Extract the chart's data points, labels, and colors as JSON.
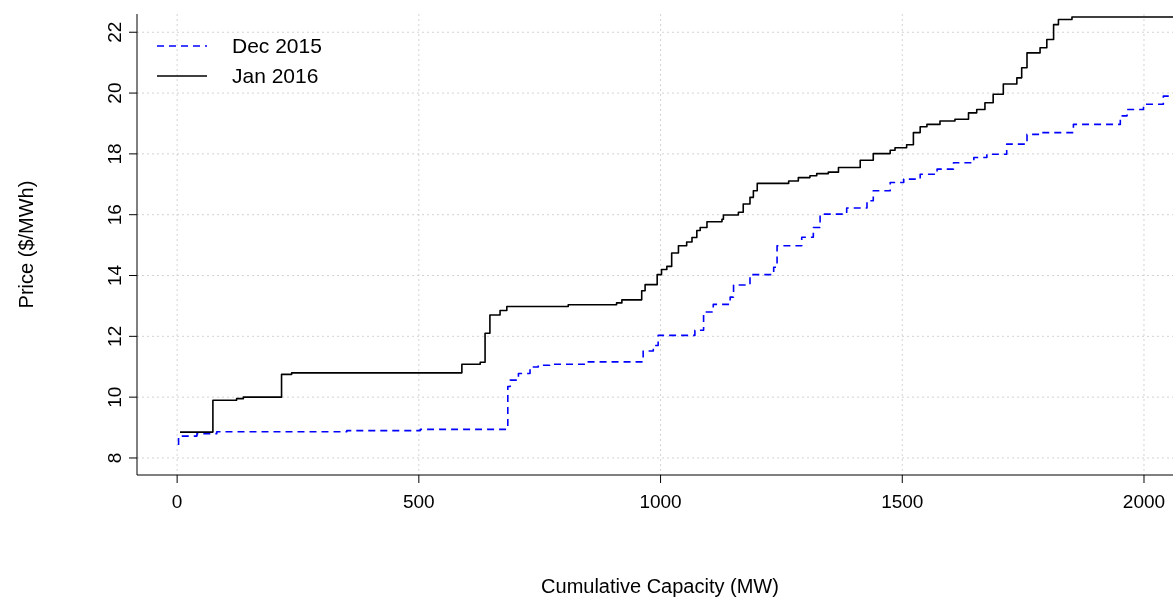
{
  "chart_data": {
    "type": "step",
    "xlabel": "Cumulative Capacity (MW)",
    "ylabel": "Price ($/MWh)",
    "xlim": [
      -83,
      2060
    ],
    "ylim": [
      7.44,
      22.6
    ],
    "xticks": [
      0,
      500,
      1000,
      1500,
      2000
    ],
    "yticks": [
      8,
      10,
      12,
      14,
      16,
      18,
      20,
      22
    ],
    "grid": true,
    "legend": "top left",
    "series": [
      {
        "name": "Dec 2015",
        "color": "#0000ff",
        "line_style": "dashed",
        "x": [
          3,
          3,
          41,
          82,
          351,
          503,
          684,
          689,
          706,
          730,
          747,
          771,
          847,
          964,
          985,
          995,
          1071,
          1089,
          1109,
          1144,
          1151,
          1185,
          1234,
          1241,
          1292,
          1316,
          1330,
          1385,
          1427,
          1440,
          1475,
          1503,
          1537,
          1572,
          1606,
          1648,
          1675,
          1716,
          1758,
          1785,
          1854,
          1951,
          1965,
          1999,
          2040,
          2060
        ],
        "values": [
          8.43,
          8.72,
          8.8,
          8.86,
          8.9,
          8.94,
          10.35,
          10.56,
          10.78,
          10.99,
          11.05,
          11.08,
          11.16,
          11.52,
          11.7,
          12.03,
          12.2,
          12.8,
          13.05,
          13.29,
          13.69,
          14.03,
          14.27,
          14.98,
          15.26,
          15.58,
          16.02,
          16.22,
          16.46,
          16.79,
          17.06,
          17.17,
          17.33,
          17.5,
          17.71,
          17.88,
          17.99,
          18.32,
          18.64,
          18.7,
          18.97,
          19.25,
          19.46,
          19.63,
          19.9,
          19.9
        ]
      },
      {
        "name": "Jan 2016",
        "color": "#000000",
        "line_style": "solid",
        "x": [
          6,
          74,
          123,
          137,
          216,
          237,
          589,
          627,
          637,
          647,
          668,
          682,
          809,
          909,
          920,
          961,
          968,
          993,
          1002,
          1013,
          1023,
          1037,
          1054,
          1065,
          1075,
          1082,
          1096,
          1127,
          1130,
          1161,
          1171,
          1185,
          1192,
          1200,
          1265,
          1285,
          1309,
          1323,
          1347,
          1368,
          1413,
          1440,
          1475,
          1485,
          1509,
          1523,
          1537,
          1551,
          1578,
          1609,
          1637,
          1654,
          1671,
          1688,
          1709,
          1737,
          1747,
          1758,
          1785,
          1799,
          1813,
          1823,
          1851,
          2060
        ],
        "values": [
          8.85,
          9.9,
          9.95,
          10.0,
          10.75,
          10.8,
          11.08,
          11.15,
          12.1,
          12.7,
          12.85,
          12.98,
          13.04,
          13.1,
          13.2,
          13.5,
          13.7,
          14.03,
          14.2,
          14.3,
          14.74,
          14.98,
          15.1,
          15.25,
          15.48,
          15.58,
          15.77,
          15.85,
          15.99,
          16.08,
          16.35,
          16.57,
          16.79,
          17.03,
          17.11,
          17.22,
          17.28,
          17.35,
          17.4,
          17.55,
          17.79,
          18.01,
          18.12,
          18.2,
          18.3,
          18.7,
          18.89,
          18.97,
          19.08,
          19.14,
          19.35,
          19.46,
          19.68,
          19.96,
          20.3,
          20.5,
          20.83,
          21.32,
          21.49,
          21.76,
          22.25,
          22.42,
          22.5,
          22.5
        ]
      }
    ]
  }
}
